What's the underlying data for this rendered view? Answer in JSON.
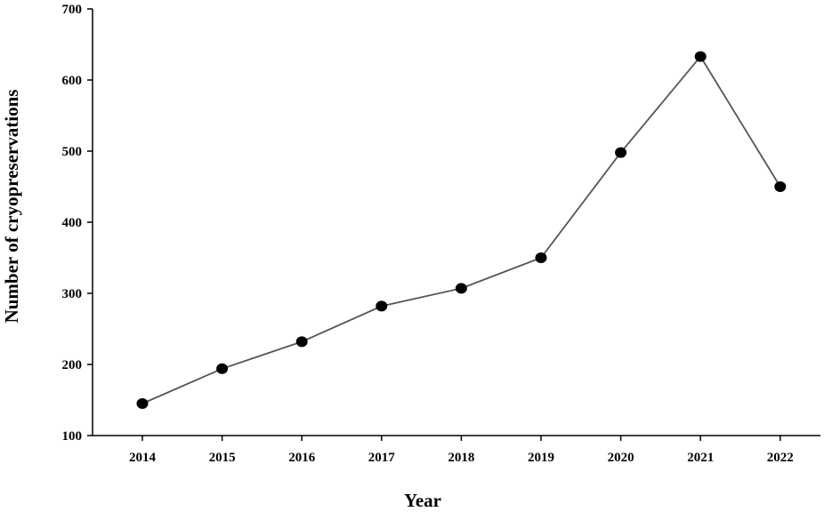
{
  "chart_data": {
    "type": "line",
    "title": "",
    "xlabel": "Year",
    "ylabel": "Number of cryopreservations",
    "ylim": [
      100,
      700
    ],
    "yticks": [
      100,
      200,
      300,
      400,
      500,
      600,
      700
    ],
    "grid": false,
    "legend": "none",
    "x": [
      "2014",
      "2015",
      "2016",
      "2017",
      "2018",
      "2019",
      "2020",
      "2021",
      "2022"
    ],
    "series": [
      {
        "values": [
          145,
          194,
          232,
          282,
          307,
          350,
          498,
          633,
          450
        ],
        "line_color": "#555555",
        "marker_color": "#000000"
      }
    ]
  }
}
